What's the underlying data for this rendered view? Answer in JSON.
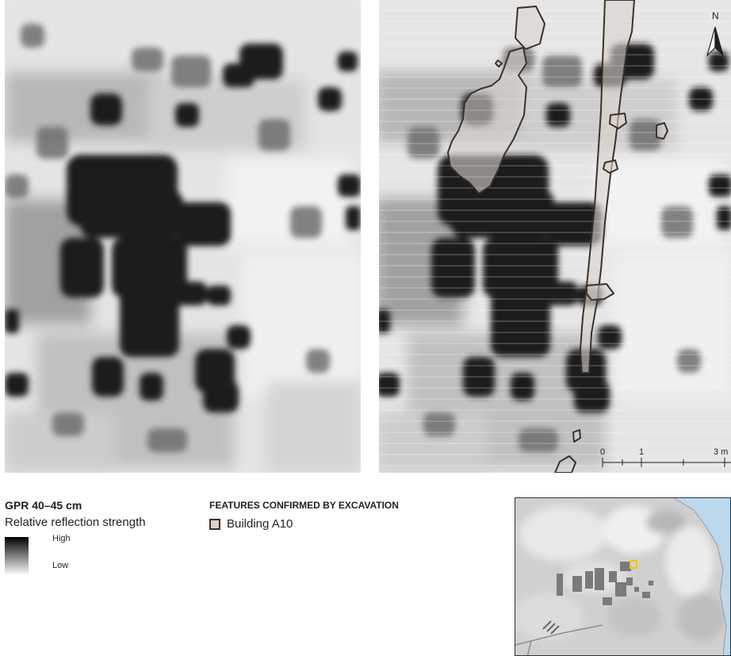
{
  "gpr_legend": {
    "title": "GPR 40–45 cm",
    "subtitle": "Relative reflection strength",
    "high_label": "High",
    "low_label": "Low"
  },
  "features_legend": {
    "title": "FEATURES CONFIRMED BY EXCAVATION",
    "item_label": "Building A10",
    "swatch_fill": "#d9d2cc",
    "swatch_stroke": "#3b3129"
  },
  "scale_bar": {
    "labels": [
      "0",
      "1",
      "3 m"
    ]
  },
  "north_arrow": {
    "label": "N"
  },
  "overview_map": {
    "marker_color": "#f5c400",
    "water_color": "#bcd8ee"
  }
}
